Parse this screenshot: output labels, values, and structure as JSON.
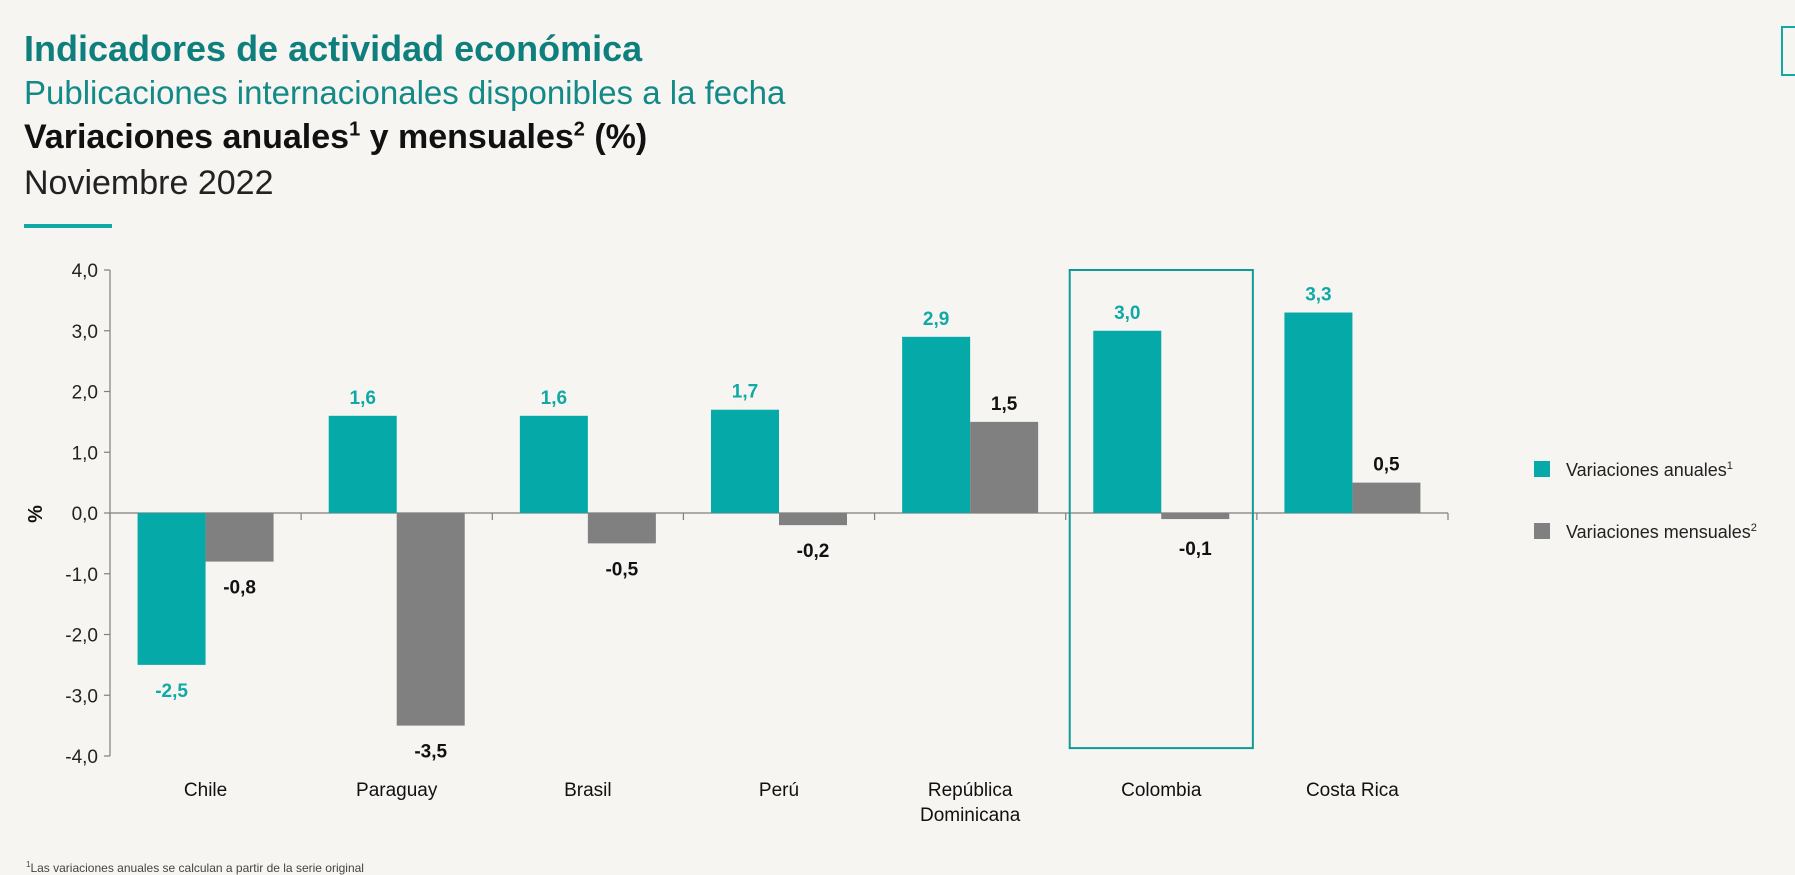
{
  "header": {
    "title": "Indicadores de actividad económica",
    "subtitle": "Publicaciones internacionales disponibles a la fecha",
    "heading_part1": "Variaciones anuales",
    "heading_sup1": "1",
    "heading_part2": " y mensuales",
    "heading_sup2": "2",
    "heading_part3": " (%)",
    "period": "Noviembre 2022"
  },
  "footnote": {
    "sup": "1",
    "text": "Las variaciones anuales se calculan a partir de la serie original"
  },
  "colors": {
    "annual": "#05a9a7",
    "monthly": "#808080",
    "annual_label": "#10a9a6",
    "monthly_label": "#111111",
    "highlight_box": "#0f9a97"
  },
  "chart_data": {
    "type": "bar",
    "ylabel": "%",
    "ylim": [
      -4,
      4
    ],
    "yticks": [
      4,
      3,
      2,
      1,
      0,
      -1,
      -2,
      -3,
      -4
    ],
    "ytick_labels": [
      "4,0",
      "3,0",
      "2,0",
      "1,0",
      "0,0",
      "-1,0",
      "-2,0",
      "-3,0",
      "-4,0"
    ],
    "categories": [
      "Chile",
      "Paraguay",
      "Brasil",
      "Perú",
      "República Dominicana",
      "Colombia",
      "Costa Rica"
    ],
    "category_lines": [
      [
        "Chile"
      ],
      [
        "Paraguay"
      ],
      [
        "Brasil"
      ],
      [
        "Perú"
      ],
      [
        "República",
        "Dominicana"
      ],
      [
        "Colombia"
      ],
      [
        "Costa Rica"
      ]
    ],
    "highlight_category": "Colombia",
    "series": [
      {
        "name": "Variaciones anuales",
        "legend_sup": "1",
        "values": [
          -2.5,
          1.6,
          1.6,
          1.7,
          2.9,
          3.0,
          3.3
        ],
        "value_labels": [
          "-2,5",
          "1,6",
          "1,6",
          "1,7",
          "2,9",
          "3,0",
          "3,3"
        ]
      },
      {
        "name": "Variaciones mensuales",
        "legend_sup": "2",
        "values": [
          -0.8,
          -3.5,
          -0.5,
          -0.2,
          1.5,
          -0.1,
          0.5
        ],
        "value_labels": [
          "-0,8",
          "-3,5",
          "-0,5",
          "-0,2",
          "1,5",
          "-0,1",
          "0,5"
        ]
      }
    ],
    "legend_position": "right"
  }
}
